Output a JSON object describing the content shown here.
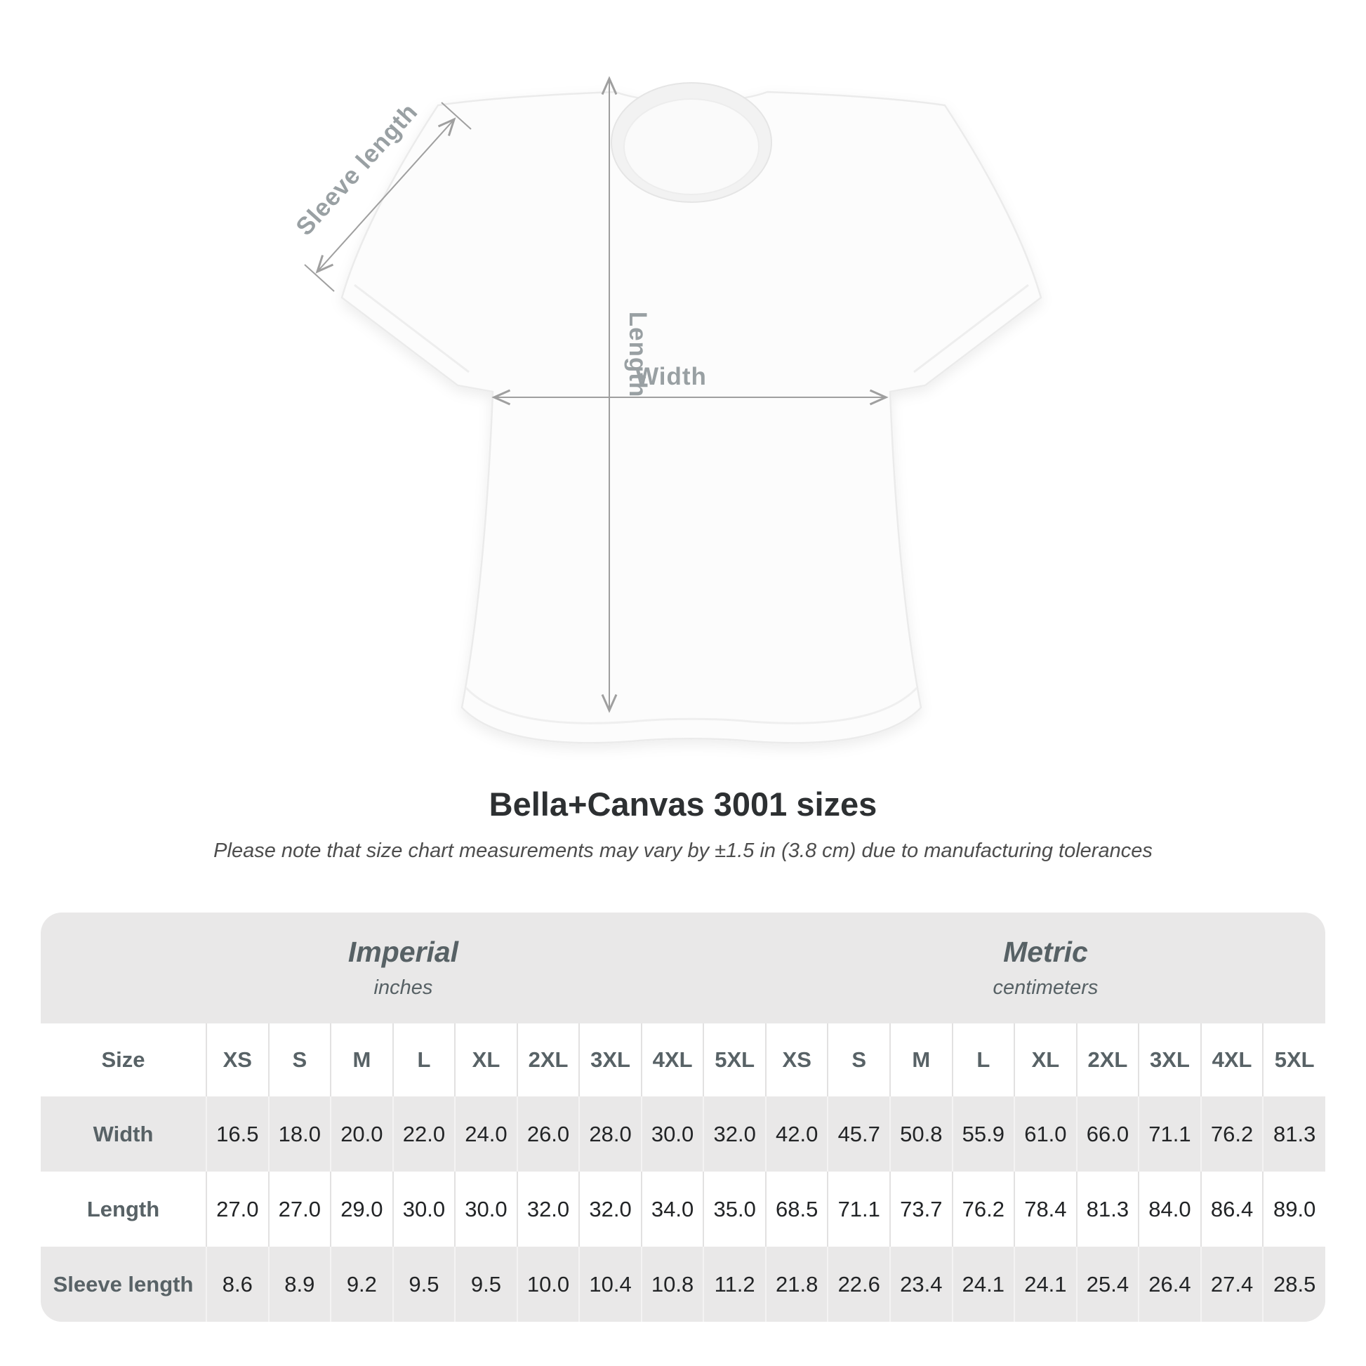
{
  "title": "Bella+Canvas 3001 sizes",
  "subtitle": "Please note that size chart measurements may vary by ±1.5 in (3.8 cm) due to manufacturing tolerances",
  "diagram": {
    "sleeve_label": "Sleeve length",
    "length_label": "Length",
    "width_label": "Width",
    "line_color": "#9f9f9f",
    "label_color": "#99a0a3"
  },
  "table": {
    "size_header": "Size",
    "groups": [
      {
        "name": "Imperial",
        "unit": "inches"
      },
      {
        "name": "Metric",
        "unit": "centimeters"
      }
    ],
    "sizes": [
      "XS",
      "S",
      "M",
      "L",
      "XL",
      "2XL",
      "3XL",
      "4XL",
      "5XL"
    ],
    "rows": [
      {
        "label": "Width",
        "imperial": [
          "16.5",
          "18.0",
          "20.0",
          "22.0",
          "24.0",
          "26.0",
          "28.0",
          "30.0",
          "32.0"
        ],
        "metric": [
          "42.0",
          "45.7",
          "50.8",
          "55.9",
          "61.0",
          "66.0",
          "71.1",
          "76.2",
          "81.3"
        ]
      },
      {
        "label": "Length",
        "imperial": [
          "27.0",
          "27.0",
          "29.0",
          "30.0",
          "30.0",
          "32.0",
          "32.0",
          "34.0",
          "35.0"
        ],
        "metric": [
          "68.5",
          "71.1",
          "73.7",
          "76.2",
          "78.4",
          "81.3",
          "84.0",
          "86.4",
          "89.0"
        ]
      },
      {
        "label": "Sleeve length",
        "imperial": [
          "8.6",
          "8.9",
          "9.2",
          "9.5",
          "9.5",
          "10.0",
          "10.4",
          "10.8",
          "11.2"
        ],
        "metric": [
          "21.8",
          "22.6",
          "23.4",
          "24.1",
          "24.1",
          "25.4",
          "26.4",
          "27.4",
          "28.5"
        ]
      }
    ]
  },
  "chart_data": {
    "type": "table",
    "title": "Bella+Canvas 3001 sizes",
    "note": "Size chart measurements may vary by ±1.5 in (3.8 cm) due to manufacturing tolerances",
    "sizes": [
      "XS",
      "S",
      "M",
      "L",
      "XL",
      "2XL",
      "3XL",
      "4XL",
      "5XL"
    ],
    "measurements": {
      "imperial_inches": {
        "Width": [
          16.5,
          18.0,
          20.0,
          22.0,
          24.0,
          26.0,
          28.0,
          30.0,
          32.0
        ],
        "Length": [
          27.0,
          27.0,
          29.0,
          30.0,
          30.0,
          32.0,
          32.0,
          34.0,
          35.0
        ],
        "Sleeve length": [
          8.6,
          8.9,
          9.2,
          9.5,
          9.5,
          10.0,
          10.4,
          10.8,
          11.2
        ]
      },
      "metric_centimeters": {
        "Width": [
          42.0,
          45.7,
          50.8,
          55.9,
          61.0,
          66.0,
          71.1,
          76.2,
          81.3
        ],
        "Length": [
          68.5,
          71.1,
          73.7,
          76.2,
          78.4,
          81.3,
          84.0,
          86.4,
          89.0
        ],
        "Sleeve length": [
          21.8,
          22.6,
          23.4,
          24.1,
          24.1,
          25.4,
          26.4,
          27.4,
          28.5
        ]
      }
    }
  }
}
